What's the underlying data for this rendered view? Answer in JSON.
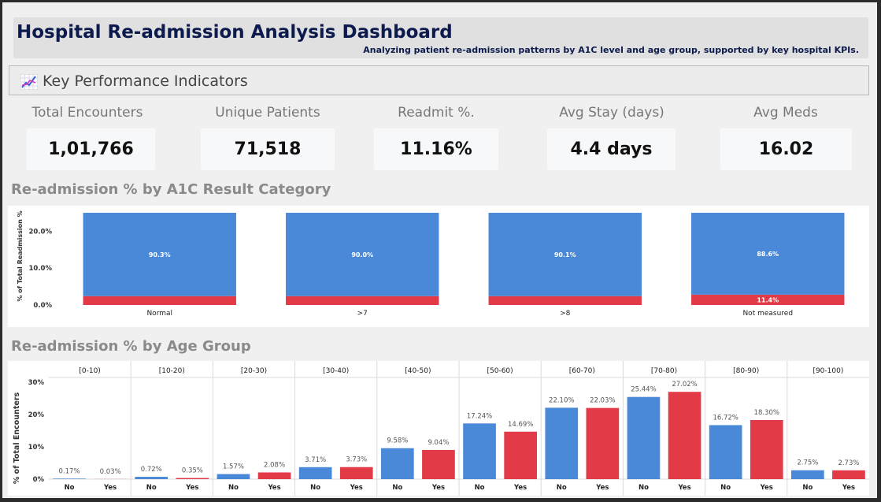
{
  "header": {
    "title": "Hospital Re-admission Analysis Dashboard",
    "subtitle": "Analyzing patient re-admission patterns by A1C level and age group, supported by key hospital KPIs."
  },
  "kpi_section": {
    "heading": "Key Performance Indicators",
    "icon": "chart-trend-icon",
    "items": [
      {
        "label": "Total Encounters",
        "value": "1,01,766"
      },
      {
        "label": "Unique Patients",
        "value": "71,518"
      },
      {
        "label": "Readmit %.",
        "value": "11.16%"
      },
      {
        "label": "Avg Stay (days)",
        "value": "4.4 days"
      },
      {
        "label": "Avg Meds",
        "value": "16.02"
      }
    ]
  },
  "colors": {
    "no": "#4a89d8",
    "yes": "#e23a47"
  },
  "chart_data": [
    {
      "type": "bar",
      "stacked": true,
      "title": "Re-admission % by A1C Result Category",
      "ylabel": "% of Total Readmission %",
      "ylim": [
        0,
        25
      ],
      "ytick_labels": [
        "0.0%",
        "10.0%",
        "20.0%"
      ],
      "categories": [
        "Normal",
        ">7",
        ">8",
        "Not measured"
      ],
      "series": [
        {
          "values": [
            2.4,
            2.4,
            2.4,
            2.8
          ],
          "labels": [
            "",
            "",
            "",
            "11.4%"
          ],
          "color": "#e23a47"
        },
        {
          "values": [
            22.6,
            22.6,
            22.6,
            22.2
          ],
          "labels": [
            "90.3%",
            "90.0%",
            "90.1%",
            "88.6%"
          ],
          "color": "#4a89d8"
        }
      ]
    },
    {
      "type": "bar",
      "title": "Re-admission % by Age Group",
      "ylabel": "% of Total Encounters",
      "ylim": [
        0,
        30
      ],
      "ytick_labels": [
        "0%",
        "10%",
        "20%",
        "30%"
      ],
      "categories": [
        "[0-10)",
        "[10-20)",
        "[20-30)",
        "[30-40)",
        "[40-50)",
        "[50-60)",
        "[60-70)",
        "[70-80)",
        "[80-90)",
        "[90-100)"
      ],
      "sub_categories": [
        "No",
        "Yes"
      ],
      "series": [
        {
          "name": "No",
          "color": "#4a89d8",
          "values": [
            0.17,
            0.72,
            1.57,
            3.71,
            9.58,
            17.24,
            22.1,
            25.44,
            16.72,
            2.75
          ]
        },
        {
          "name": "Yes",
          "color": "#e23a47",
          "values": [
            0.03,
            0.35,
            2.08,
            3.73,
            9.04,
            14.69,
            22.03,
            27.02,
            18.3,
            2.73
          ]
        }
      ]
    }
  ]
}
